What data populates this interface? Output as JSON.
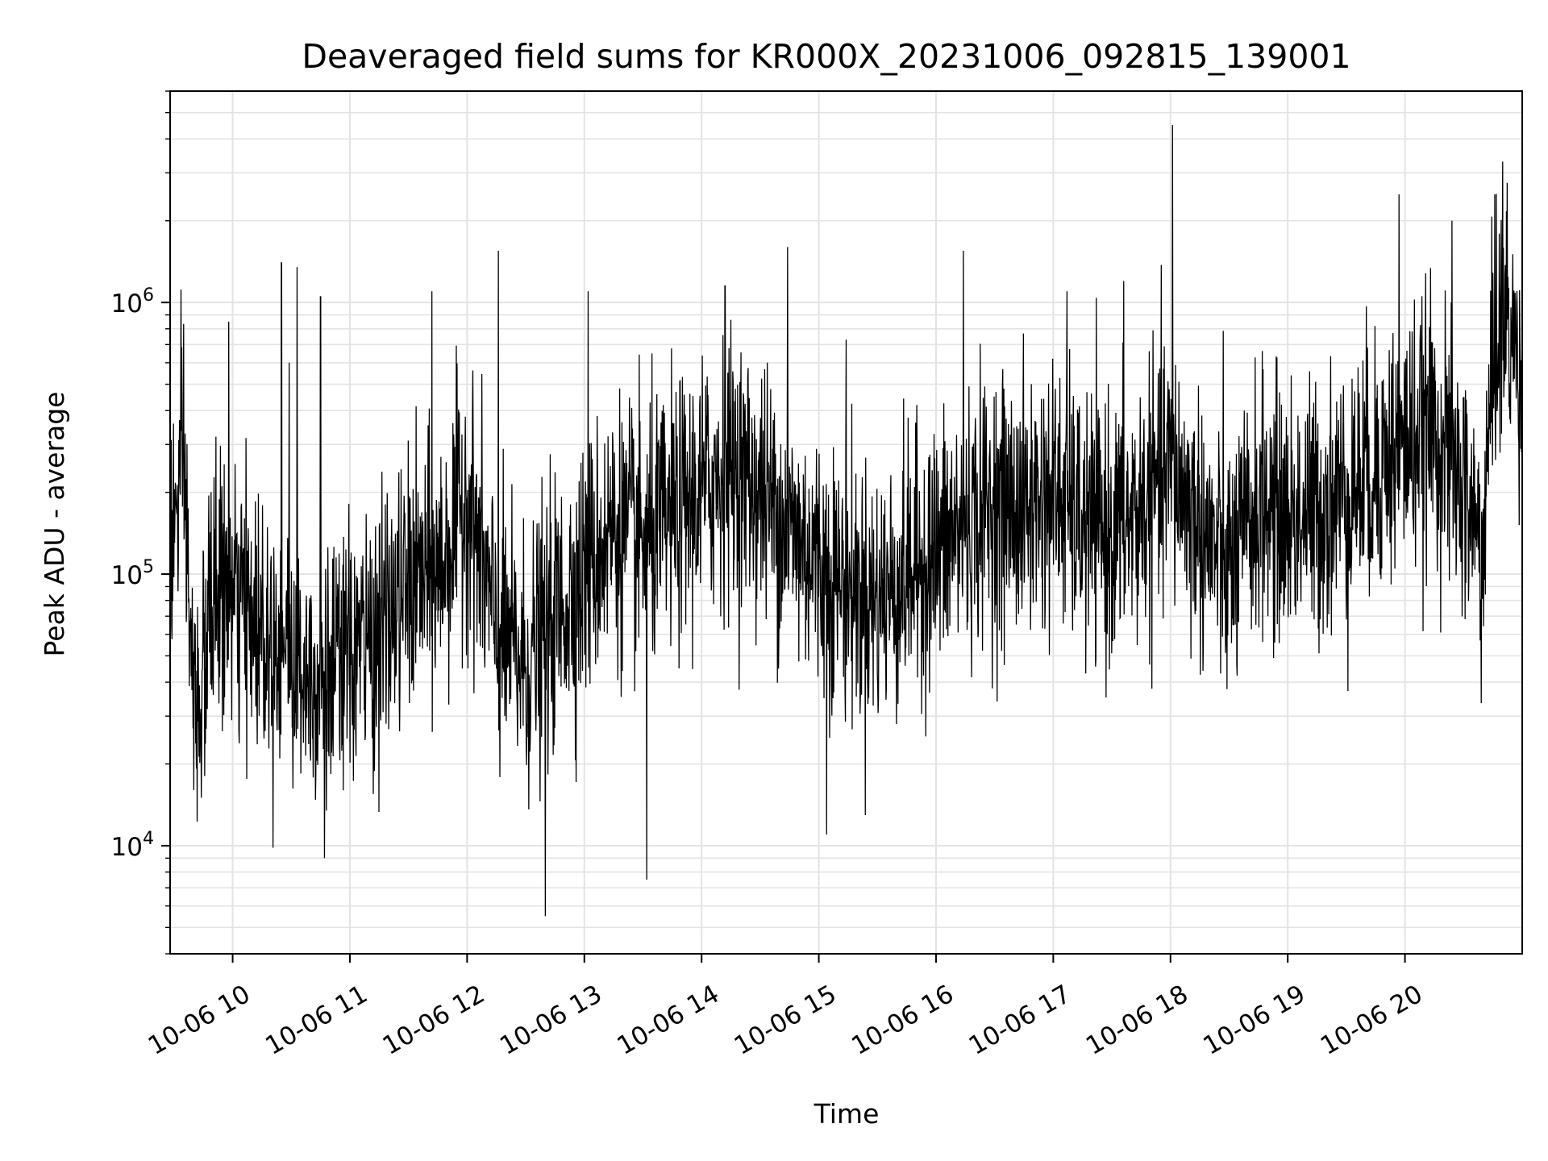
{
  "chart_data": {
    "type": "line",
    "title": "Deaveraged field sums for KR000X_20231006_092815_139001",
    "xlabel": "Time",
    "ylabel": "Peak ADU - average",
    "y_scale": "log",
    "ylim": [
      4000,
      6000000
    ],
    "xlim": [
      "2023-10-06 09:28",
      "2023-10-06 21:00"
    ],
    "x_ticks": [
      {
        "t": "2023-10-06 10:00",
        "label": "10-06 10"
      },
      {
        "t": "2023-10-06 11:00",
        "label": "10-06 11"
      },
      {
        "t": "2023-10-06 12:00",
        "label": "10-06 12"
      },
      {
        "t": "2023-10-06 13:00",
        "label": "10-06 13"
      },
      {
        "t": "2023-10-06 14:00",
        "label": "10-06 14"
      },
      {
        "t": "2023-10-06 15:00",
        "label": "10-06 15"
      },
      {
        "t": "2023-10-06 16:00",
        "label": "10-06 16"
      },
      {
        "t": "2023-10-06 17:00",
        "label": "10-06 17"
      },
      {
        "t": "2023-10-06 18:00",
        "label": "10-06 18"
      },
      {
        "t": "2023-10-06 19:00",
        "label": "10-06 19"
      },
      {
        "t": "2023-10-06 20:00",
        "label": "10-06 20"
      }
    ],
    "y_ticks": [
      {
        "value": 10000,
        "base": "10",
        "exp": "4"
      },
      {
        "value": 100000,
        "base": "10",
        "exp": "5"
      },
      {
        "value": 1000000,
        "base": "10",
        "exp": "6"
      }
    ],
    "grid": true,
    "line_color": "#000000",
    "series": [
      {
        "points": [
          [
            "2023-10-06 09:28",
            120000
          ],
          [
            "2023-10-06 09:35",
            250000
          ],
          [
            "2023-10-06 09:40",
            30000
          ],
          [
            "2023-10-06 09:45",
            40000
          ],
          [
            "2023-10-06 09:50",
            90000
          ],
          [
            "2023-10-06 10:00",
            80000
          ],
          [
            "2023-10-06 10:10",
            70000
          ],
          [
            "2023-10-06 10:20",
            60000
          ],
          [
            "2023-10-06 10:30",
            50000
          ],
          [
            "2023-10-06 10:40",
            45000
          ],
          [
            "2023-10-06 10:50",
            40000
          ],
          [
            "2023-10-06 11:00",
            50000
          ],
          [
            "2023-10-06 11:15",
            60000
          ],
          [
            "2023-10-06 11:30",
            90000
          ],
          [
            "2023-10-06 11:45",
            100000
          ],
          [
            "2023-10-06 12:00",
            200000
          ],
          [
            "2023-10-06 12:15",
            60000
          ],
          [
            "2023-10-06 12:30",
            45000
          ],
          [
            "2023-10-06 12:45",
            70000
          ],
          [
            "2023-10-06 13:00",
            100000
          ],
          [
            "2023-10-06 13:15",
            150000
          ],
          [
            "2023-10-06 13:30",
            130000
          ],
          [
            "2023-10-06 13:45",
            160000
          ],
          [
            "2023-10-06 14:00",
            200000
          ],
          [
            "2023-10-06 14:15",
            250000
          ],
          [
            "2023-10-06 14:30",
            200000
          ],
          [
            "2023-10-06 14:45",
            150000
          ],
          [
            "2023-10-06 15:00",
            110000
          ],
          [
            "2023-10-06 15:15",
            90000
          ],
          [
            "2023-10-06 15:30",
            80000
          ],
          [
            "2023-10-06 15:45",
            100000
          ],
          [
            "2023-10-06 16:00",
            120000
          ],
          [
            "2023-10-06 16:15",
            150000
          ],
          [
            "2023-10-06 16:30",
            180000
          ],
          [
            "2023-10-06 16:45",
            170000
          ],
          [
            "2023-10-06 17:00",
            200000
          ],
          [
            "2023-10-06 17:15",
            150000
          ],
          [
            "2023-10-06 17:30",
            140000
          ],
          [
            "2023-10-06 17:45",
            170000
          ],
          [
            "2023-10-06 18:00",
            250000
          ],
          [
            "2023-10-06 18:15",
            150000
          ],
          [
            "2023-10-06 18:30",
            100000
          ],
          [
            "2023-10-06 18:45",
            180000
          ],
          [
            "2023-10-06 19:00",
            160000
          ],
          [
            "2023-10-06 19:15",
            170000
          ],
          [
            "2023-10-06 19:30",
            200000
          ],
          [
            "2023-10-06 19:45",
            250000
          ],
          [
            "2023-10-06 20:00",
            300000
          ],
          [
            "2023-10-06 20:15",
            350000
          ],
          [
            "2023-10-06 20:30",
            200000
          ],
          [
            "2023-10-06 20:40",
            120000
          ],
          [
            "2023-10-06 20:45",
            600000
          ],
          [
            "2023-10-06 20:52",
            900000
          ],
          [
            "2023-10-06 21:00",
            500000
          ]
        ],
        "spikes": [
          [
            "2023-10-06 09:58",
            850000
          ],
          [
            "2023-10-06 10:25",
            1400000
          ],
          [
            "2023-10-06 10:29",
            600000
          ],
          [
            "2023-10-06 10:33",
            1350000
          ],
          [
            "2023-10-06 10:45",
            1050000
          ],
          [
            "2023-10-06 10:47",
            9000
          ],
          [
            "2023-10-06 11:42",
            1100000
          ],
          [
            "2023-10-06 12:16",
            1550000
          ],
          [
            "2023-10-06 12:40",
            5500
          ],
          [
            "2023-10-06 13:02",
            1100000
          ],
          [
            "2023-10-06 13:32",
            7500
          ],
          [
            "2023-10-06 14:12",
            1150000
          ],
          [
            "2023-10-06 14:44",
            1600000
          ],
          [
            "2023-10-06 15:04",
            11000
          ],
          [
            "2023-10-06 15:14",
            730000
          ],
          [
            "2023-10-06 16:14",
            1550000
          ],
          [
            "2023-10-06 17:07",
            1100000
          ],
          [
            "2023-10-06 17:36",
            1200000
          ],
          [
            "2023-10-06 18:01",
            4500000
          ],
          [
            "2023-10-06 19:57",
            2500000
          ],
          [
            "2023-10-06 20:24",
            2000000
          ],
          [
            "2023-10-06 20:46",
            2500000
          ],
          [
            "2023-10-06 20:50",
            3300000
          ]
        ]
      }
    ]
  }
}
